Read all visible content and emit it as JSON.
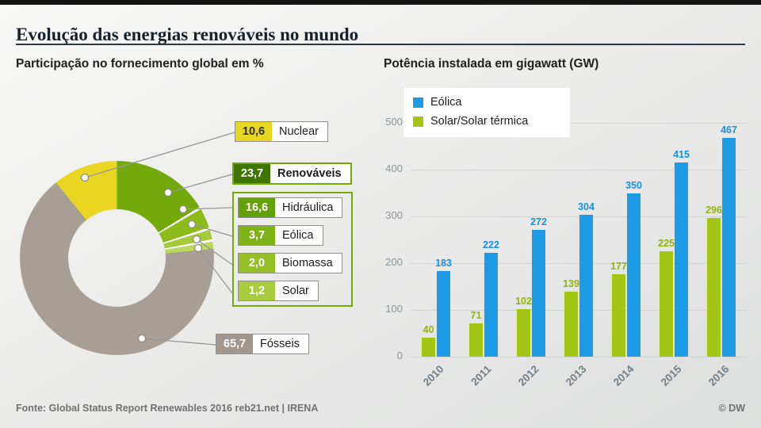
{
  "page": {
    "title": "Evolução das energias renováveis no mundo",
    "footer_source": "Fonte: Global Status Report Renewables 2016 reb21.net | IRENA",
    "footer_credit": "© DW"
  },
  "donut": {
    "subtitle": "Participação no fornecimento global em %",
    "frame_color": "#76a905",
    "callouts": {
      "nuclear": {
        "value": "10,6",
        "label": "Nuclear",
        "chip_color": "#e9d622",
        "text_color": "#2f2f2f"
      },
      "renovaveis": {
        "value": "23,7",
        "label": "Renováveis",
        "chip_color": "#3f7603",
        "text_color": "#ffffff"
      },
      "hidraulica": {
        "value": "16,6",
        "label": "Hidráulica",
        "chip_color": "#66a009",
        "text_color": "#ffffff"
      },
      "eolica": {
        "value": "3,7",
        "label": "Eólica",
        "chip_color": "#7fb214",
        "text_color": "#ffffff"
      },
      "biomassa": {
        "value": "2,0",
        "label": "Biomassa",
        "chip_color": "#94bf27",
        "text_color": "#ffffff"
      },
      "solar": {
        "value": "1,2",
        "label": "Solar",
        "chip_color": "#a9cc3f",
        "text_color": "#ffffff"
      },
      "fosseis": {
        "value": "65,7",
        "label": "Fósseis",
        "chip_color": "#a09890",
        "text_color": "#ffffff"
      }
    }
  },
  "bars": {
    "subtitle": "Potência instalada em gigawatt (GW)",
    "legend": [
      {
        "label": "Eólica",
        "color": "#1d9ce5"
      },
      {
        "label": "Solar/Solar térmica",
        "color": "#a3c614"
      }
    ]
  },
  "chart_data": [
    {
      "type": "pie",
      "title": "Participação no fornecimento global em %",
      "unit": "%",
      "segments": [
        {
          "label": "Hidráulica",
          "value": 16.6,
          "color": "#74a90c",
          "gap_after": true
        },
        {
          "label": "Eólica",
          "value": 3.7,
          "color": "#8cbc1a",
          "gap_after": true
        },
        {
          "label": "Biomassa",
          "value": 2.0,
          "color": "#a5cb3b",
          "gap_after": true
        },
        {
          "label": "Solar",
          "value": 1.2,
          "color": "#bcd75e"
        },
        {
          "label": "Fósseis",
          "value": 65.7,
          "color": "#a79f96"
        },
        {
          "label": "Nuclear",
          "value": 10.6,
          "color": "#e9d622"
        }
      ],
      "groups": [
        {
          "label": "Renováveis",
          "value": 23.7
        },
        {
          "label": "Fósseis",
          "value": 65.7
        },
        {
          "label": "Nuclear",
          "value": 10.6
        }
      ]
    },
    {
      "type": "bar",
      "title": "Potência instalada em gigawatt (GW)",
      "categories": [
        "2010",
        "2011",
        "2012",
        "2013",
        "2014",
        "2015",
        "2016"
      ],
      "series": [
        {
          "key": "solar",
          "name": "Solar/Solar térmica",
          "color": "#a3c614",
          "label_color": "#91b40c",
          "values": [
            40,
            71,
            102,
            139,
            177,
            225,
            296
          ]
        },
        {
          "key": "eolica",
          "name": "Eólica",
          "color": "#1d9ce5",
          "label_color": "#1691e0",
          "values": [
            183,
            222,
            272,
            304,
            350,
            415,
            467
          ]
        }
      ],
      "ylim": [
        0,
        500
      ],
      "yticks": [
        0,
        100,
        200,
        300,
        400,
        500
      ],
      "grid": true,
      "legend_position": "top-left"
    }
  ]
}
